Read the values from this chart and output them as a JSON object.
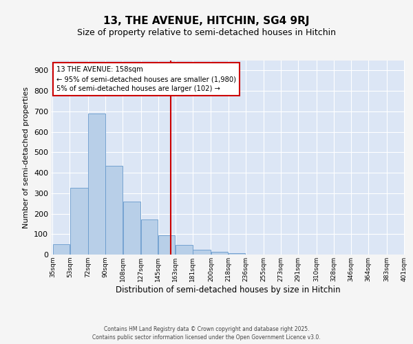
{
  "title": "13, THE AVENUE, HITCHIN, SG4 9RJ",
  "subtitle": "Size of property relative to semi-detached houses in Hitchin",
  "xlabel": "Distribution of semi-detached houses by size in Hitchin",
  "ylabel": "Number of semi-detached properties",
  "bar_edges": [
    35,
    53,
    72,
    90,
    108,
    127,
    145,
    163,
    181,
    200,
    218,
    236,
    255,
    273,
    291,
    310,
    328,
    346,
    364,
    383,
    401
  ],
  "bar_heights": [
    50,
    325,
    690,
    435,
    260,
    170,
    95,
    47,
    25,
    15,
    6,
    0,
    0,
    0,
    0,
    0,
    0,
    0,
    0,
    0
  ],
  "bar_color": "#b8cfe8",
  "bar_edgecolor": "#6699cc",
  "vline_x": 158,
  "vline_color": "#cc0000",
  "annotation_text": "13 THE AVENUE: 158sqm\n← 95% of semi-detached houses are smaller (1,980)\n5% of semi-detached houses are larger (102) →",
  "annotation_box_color": "#cc0000",
  "ylim": [
    0,
    950
  ],
  "yticks": [
    0,
    100,
    200,
    300,
    400,
    500,
    600,
    700,
    800,
    900
  ],
  "tick_labels": [
    "35sqm",
    "53sqm",
    "72sqm",
    "90sqm",
    "108sqm",
    "127sqm",
    "145sqm",
    "163sqm",
    "181sqm",
    "200sqm",
    "218sqm",
    "236sqm",
    "255sqm",
    "273sqm",
    "291sqm",
    "310sqm",
    "328sqm",
    "346sqm",
    "364sqm",
    "383sqm",
    "401sqm"
  ],
  "background_color": "#dce6f5",
  "fig_background_color": "#f5f5f5",
  "footer_text": "Contains HM Land Registry data © Crown copyright and database right 2025.\nContains public sector information licensed under the Open Government Licence v3.0.",
  "title_fontsize": 11,
  "subtitle_fontsize": 9
}
